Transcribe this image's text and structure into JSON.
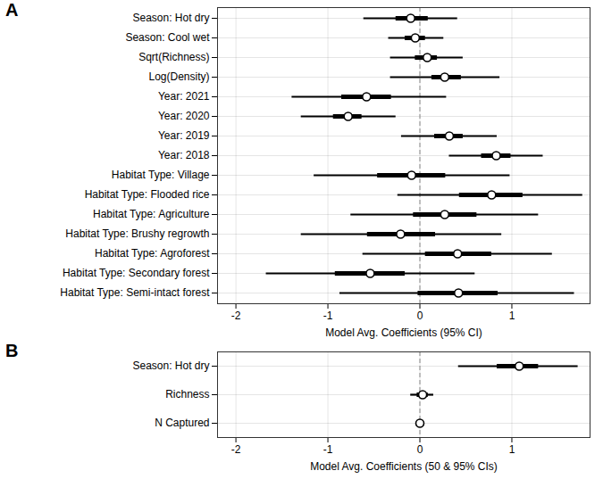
{
  "chart_data": [
    {
      "type": "forest",
      "panel": "A",
      "xlabel": "Model Avg. Coefficients (95% CI)",
      "categories": [
        "Season: Hot dry",
        "Season: Cool wet",
        "Sqrt(Richness)",
        "Log(Density)",
        "Year: 2021",
        "Year: 2020",
        "Year: 2019",
        "Year: 2018",
        "Habitat Type: Village",
        "Habitat Type: Flooded rice",
        "Habitat Type: Agriculture",
        "Habitat Type: Brushy regrowth",
        "Habitat Type: Agroforest",
        "Habitat Type: Secondary forest",
        "Habitat Type: Semi-intact forest"
      ],
      "values": [
        -0.1,
        -0.05,
        0.08,
        0.27,
        -0.58,
        -0.78,
        0.32,
        0.83,
        -0.09,
        0.78,
        0.27,
        -0.21,
        0.41,
        -0.54,
        0.42
      ],
      "ci50": [
        [
          -0.26,
          0.09
        ],
        [
          -0.16,
          0.06
        ],
        [
          -0.05,
          0.19
        ],
        [
          0.13,
          0.45
        ],
        [
          -0.85,
          -0.31
        ],
        [
          -0.94,
          -0.63
        ],
        [
          0.16,
          0.47
        ],
        [
          0.67,
          0.99
        ],
        [
          -0.46,
          0.28
        ],
        [
          0.43,
          1.12
        ],
        [
          -0.07,
          0.62
        ],
        [
          -0.57,
          0.17
        ],
        [
          0.06,
          0.78
        ],
        [
          -0.92,
          -0.16
        ],
        [
          -0.02,
          0.85
        ]
      ],
      "ci95": [
        [
          -0.61,
          0.41
        ],
        [
          -0.34,
          0.26
        ],
        [
          -0.32,
          0.47
        ],
        [
          -0.32,
          0.87
        ],
        [
          -1.39,
          0.29
        ],
        [
          -1.29,
          -0.26
        ],
        [
          -0.2,
          0.84
        ],
        [
          0.32,
          1.34
        ],
        [
          -1.15,
          0.98
        ],
        [
          -0.24,
          1.77
        ],
        [
          -0.75,
          1.29
        ],
        [
          -1.29,
          0.89
        ],
        [
          -0.62,
          1.44
        ],
        [
          -1.67,
          0.6
        ],
        [
          -0.87,
          1.68
        ]
      ],
      "xlim": [
        -2.2,
        1.85
      ],
      "xticks": [
        -2,
        -1,
        0,
        1
      ],
      "reference_x": 0,
      "grid": true,
      "color": "#000000"
    },
    {
      "type": "forest",
      "panel": "B",
      "xlabel": "Model Avg. Coefficients (50 & 95% CIs)",
      "categories": [
        "Season: Hot dry",
        "Richness",
        "N Captured"
      ],
      "values": [
        1.08,
        0.03,
        0.0
      ],
      "ci50": [
        [
          0.84,
          1.29
        ],
        [
          -0.03,
          0.09
        ],
        [
          -0.01,
          0.01
        ]
      ],
      "ci95": [
        [
          0.42,
          1.72
        ],
        [
          -0.1,
          0.15
        ],
        [
          -0.02,
          0.02
        ]
      ],
      "xlim": [
        -2.2,
        1.85
      ],
      "xticks": [
        -2,
        -1,
        0,
        1
      ],
      "reference_x": 0,
      "grid": true,
      "color": "#000000"
    }
  ]
}
